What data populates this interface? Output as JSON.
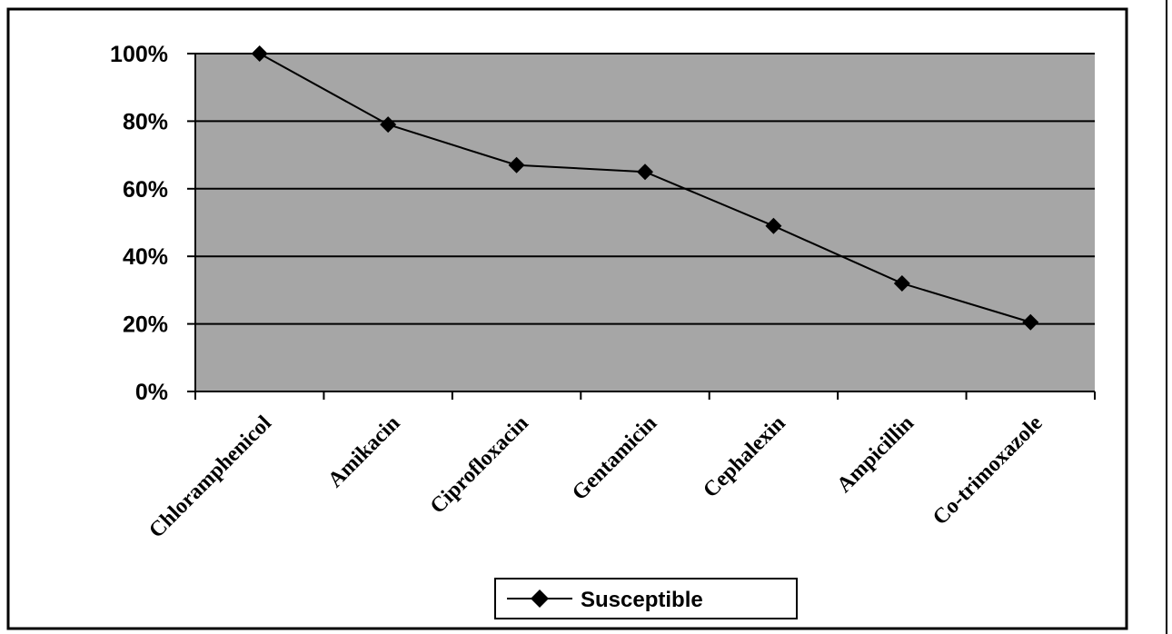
{
  "chart_data": {
    "type": "line",
    "title": "",
    "xlabel": "",
    "ylabel": "",
    "categories": [
      "Chloramphenicol",
      "Amikacin",
      "Ciprofloxacin",
      "Gentamicin",
      "Cephalexin",
      "Ampicillin",
      "Co-trimoxazole"
    ],
    "series": [
      {
        "name": "Susceptible",
        "values": [
          100,
          79,
          67,
          65,
          49,
          32,
          20.5
        ]
      }
    ],
    "ylim": [
      0,
      100
    ],
    "yticks": [
      "0%",
      "20%",
      "40%",
      "60%",
      "80%",
      "100%"
    ],
    "grid": true,
    "legend_position": "bottom",
    "colors": {
      "plot_background": "#a6a6a6",
      "line": "#000000",
      "marker": "#000000"
    },
    "marker": "diamond"
  }
}
